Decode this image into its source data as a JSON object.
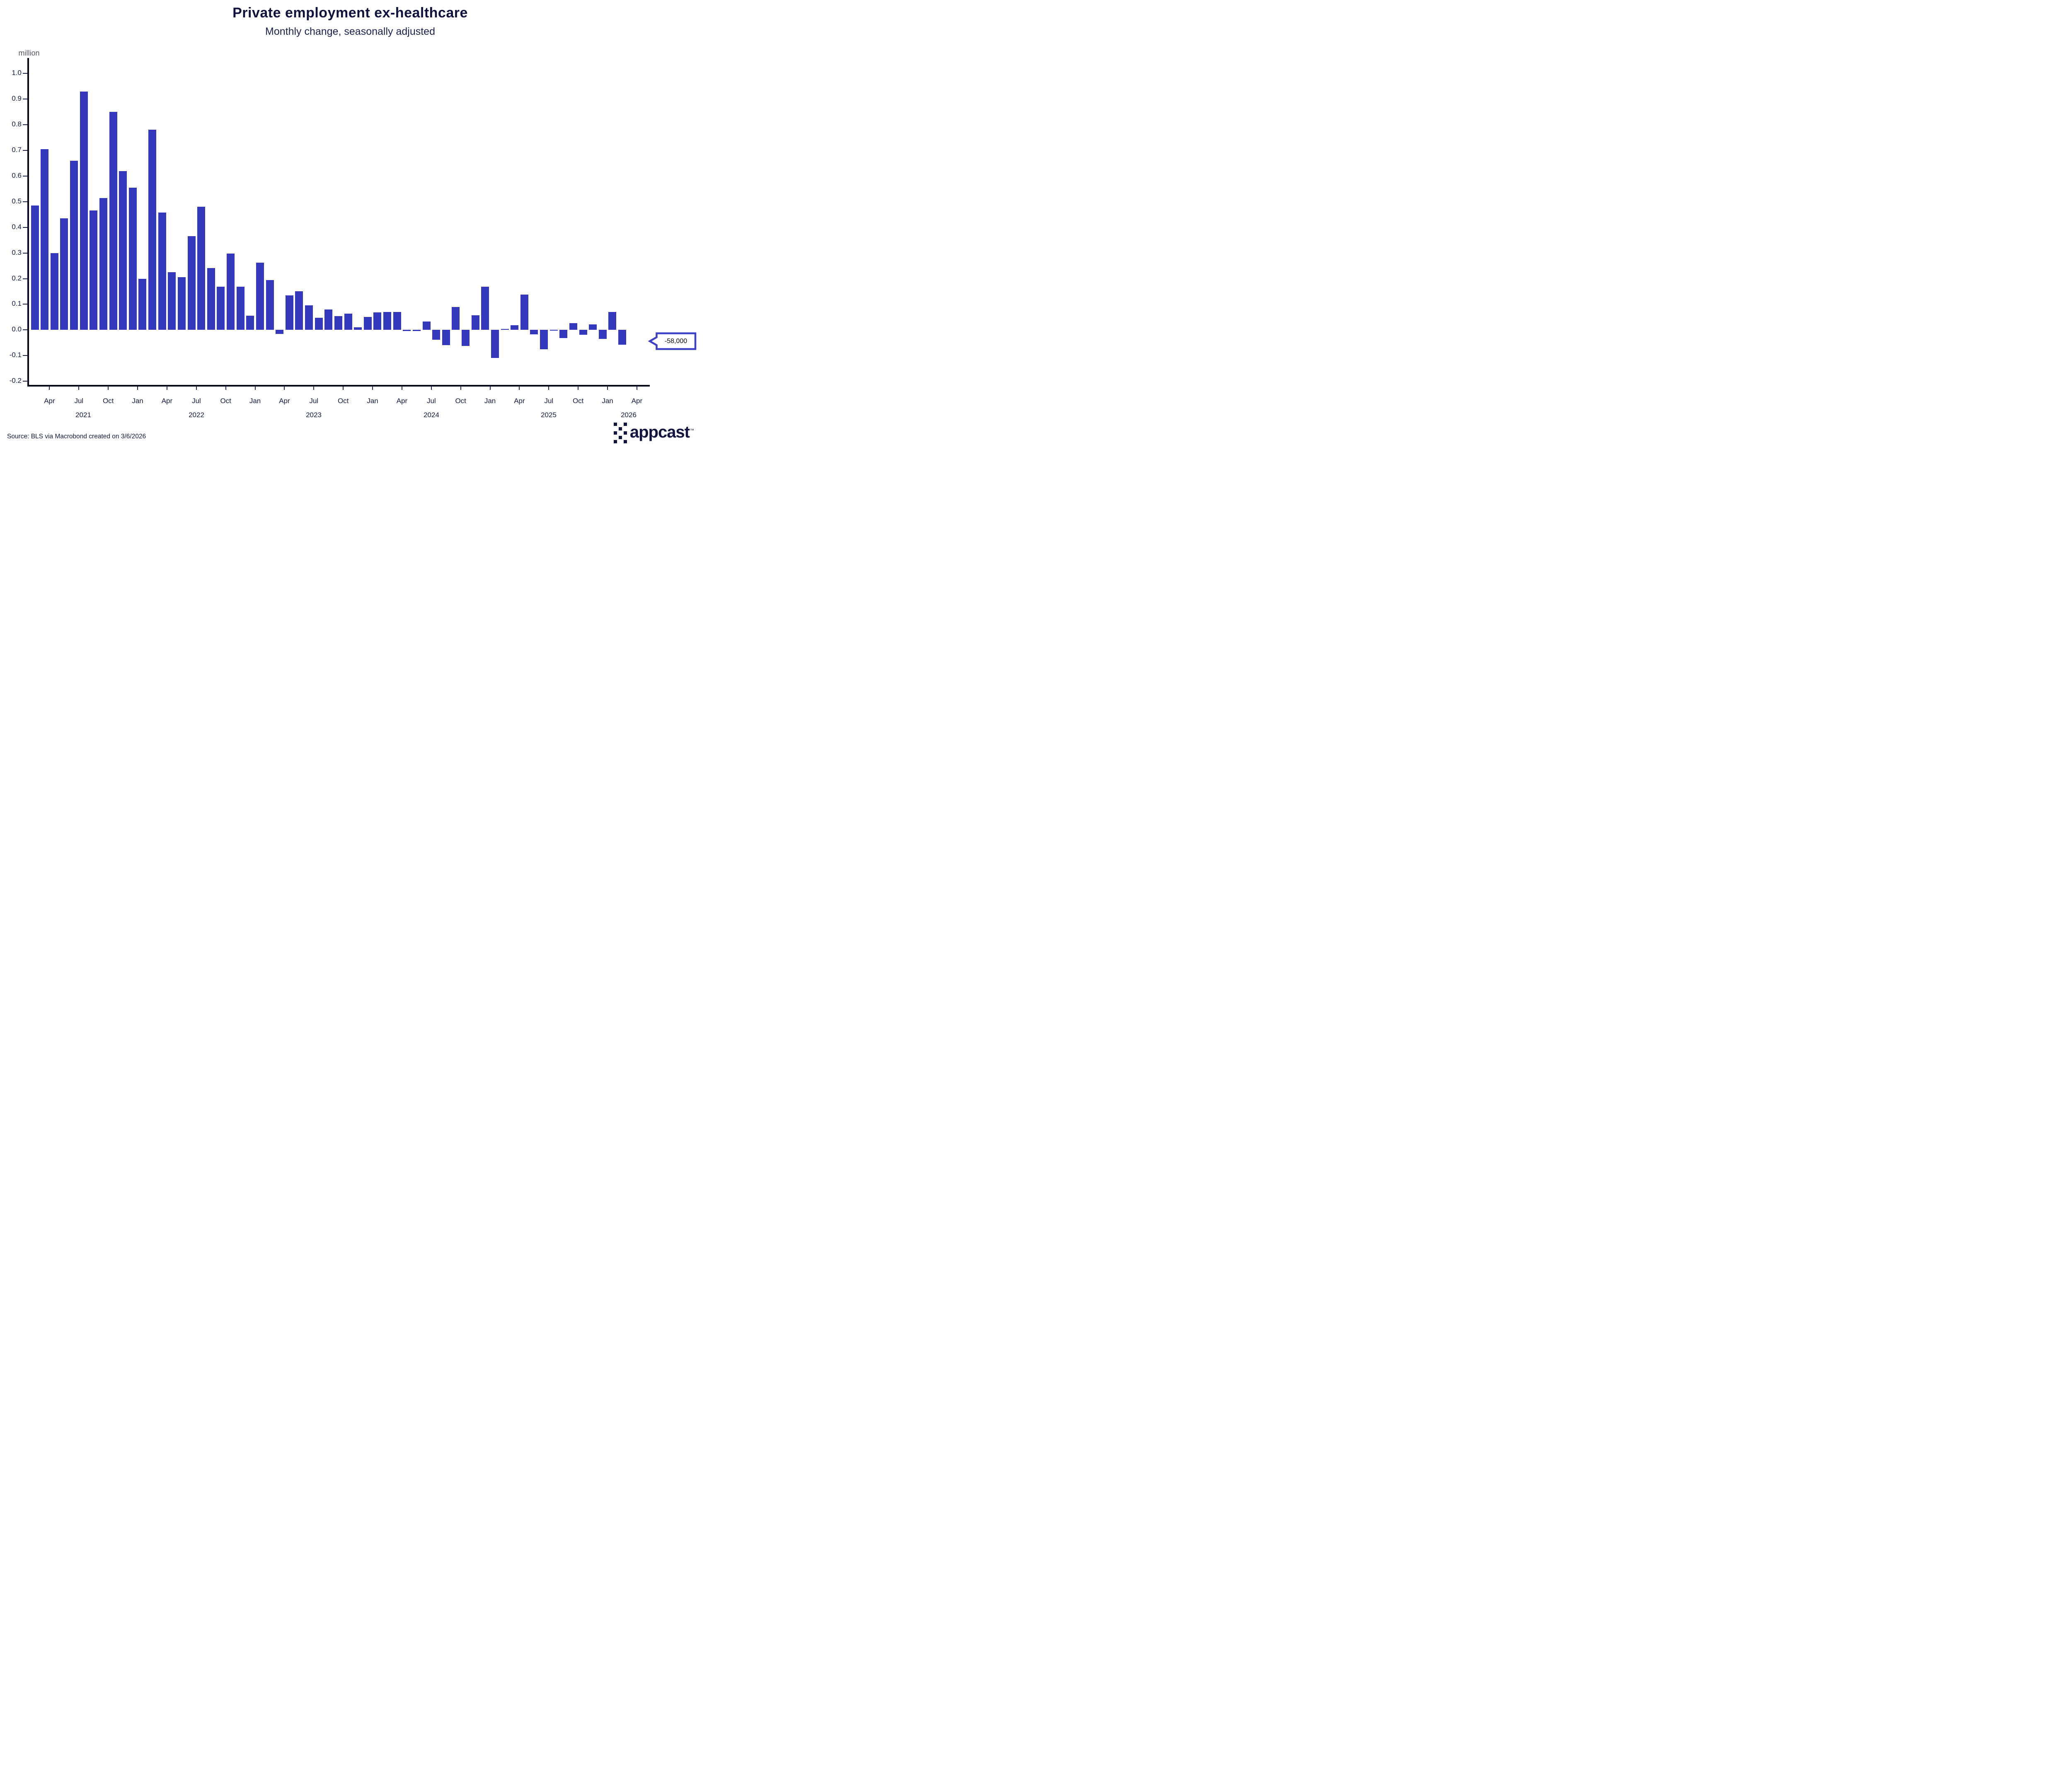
{
  "header": {
    "title": "Private employment ex-healthcare",
    "subtitle": "Monthly change, seasonally adjusted"
  },
  "chart_data": {
    "type": "bar",
    "title": "Private employment ex-healthcare",
    "subtitle": "Monthly change, seasonally adjusted",
    "ylabel": "million",
    "xlabel": "",
    "ylim": [
      -0.2,
      1.0
    ],
    "grid": false,
    "bar_color": "#3338bd",
    "categories": [
      "Feb 2021",
      "Mar 2021",
      "Apr 2021",
      "May 2021",
      "Jun 2021",
      "Jul 2021",
      "Aug 2021",
      "Sep 2021",
      "Oct 2021",
      "Nov 2021",
      "Dec 2021",
      "Jan 2022",
      "Feb 2022",
      "Mar 2022",
      "Apr 2022",
      "May 2022",
      "Jun 2022",
      "Jul 2022",
      "Aug 2022",
      "Sep 2022",
      "Oct 2022",
      "Nov 2022",
      "Dec 2022",
      "Jan 2023",
      "Feb 2023",
      "Mar 2023",
      "Apr 2023",
      "May 2023",
      "Jun 2023",
      "Jul 2023",
      "Aug 2023",
      "Sep 2023",
      "Oct 2023",
      "Nov 2023",
      "Dec 2023",
      "Jan 2024",
      "Feb 2024",
      "Mar 2024",
      "Apr 2024",
      "May 2024",
      "Jun 2024",
      "Jul 2024",
      "Aug 2024",
      "Sep 2024",
      "Oct 2024",
      "Nov 2024",
      "Dec 2024",
      "Jan 2025",
      "Feb 2025",
      "Mar 2025",
      "Apr 2025",
      "May 2025",
      "Jun 2025",
      "Jul 2025",
      "Aug 2025",
      "Sep 2025",
      "Oct 2025",
      "Nov 2025",
      "Dec 2025",
      "Jan 2026",
      "Feb 2026"
    ],
    "values": [
      0.485,
      0.705,
      0.3,
      0.435,
      0.66,
      0.93,
      0.465,
      0.515,
      0.85,
      0.62,
      0.555,
      0.2,
      0.78,
      0.458,
      0.225,
      0.206,
      0.366,
      0.48,
      0.242,
      0.168,
      0.298,
      0.168,
      0.056,
      0.262,
      0.195,
      -0.015,
      0.135,
      0.15,
      0.095,
      0.047,
      0.08,
      0.053,
      0.063,
      0.01,
      0.05,
      0.068,
      0.07,
      0.07,
      -0.005,
      -0.005,
      0.032,
      -0.038,
      -0.06,
      0.09,
      -0.062,
      0.057,
      0.168,
      -0.11,
      0.004,
      0.019,
      0.137,
      -0.018,
      -0.076,
      -0.002,
      -0.032,
      0.027,
      -0.019,
      0.021,
      -0.035,
      0.07,
      -0.058
    ],
    "y_tick_labels": [
      "1.0",
      "0.9",
      "0.8",
      "0.7",
      "0.6",
      "0.5",
      "0.4",
      "0.3",
      "0.2",
      "0.1",
      "0.0",
      "-0.1",
      "-0.2"
    ],
    "y_tick_values": [
      1.0,
      0.9,
      0.8,
      0.7,
      0.6,
      0.5,
      0.4,
      0.3,
      0.2,
      0.1,
      0.0,
      -0.1,
      -0.2
    ],
    "x_ticks": [
      {
        "label": "Apr",
        "month_index": 2
      },
      {
        "label": "Jul",
        "month_index": 5
      },
      {
        "label": "Oct",
        "month_index": 8
      },
      {
        "label": "Jan",
        "month_index": 11
      },
      {
        "label": "Apr",
        "month_index": 14
      },
      {
        "label": "Jul",
        "month_index": 17
      },
      {
        "label": "Oct",
        "month_index": 20
      },
      {
        "label": "Jan",
        "month_index": 23
      },
      {
        "label": "Apr",
        "month_index": 26
      },
      {
        "label": "Jul",
        "month_index": 29
      },
      {
        "label": "Oct",
        "month_index": 32
      },
      {
        "label": "Jan",
        "month_index": 35
      },
      {
        "label": "Apr",
        "month_index": 38
      },
      {
        "label": "Jul",
        "month_index": 41
      },
      {
        "label": "Oct",
        "month_index": 44
      },
      {
        "label": "Jan",
        "month_index": 47
      },
      {
        "label": "Apr",
        "month_index": 50
      },
      {
        "label": "Jul",
        "month_index": 53
      },
      {
        "label": "Oct",
        "month_index": 56
      },
      {
        "label": "Jan",
        "month_index": 59
      },
      {
        "label": "Apr",
        "month_index": 62
      }
    ],
    "year_labels": [
      {
        "label": "2021",
        "x": 201
      },
      {
        "label": "2022",
        "x": 474
      },
      {
        "label": "2023",
        "x": 757
      },
      {
        "label": "2024",
        "x": 1041
      },
      {
        "label": "2025",
        "x": 1324
      },
      {
        "label": "2026",
        "x": 1517
      }
    ],
    "legend_position": "none"
  },
  "callout": {
    "text": "-58,000",
    "value": -58000,
    "points_to": "Feb 2026"
  },
  "footer": {
    "source": "Source: BLS via Macrobond created on 3/6/2026"
  },
  "logo": {
    "text": "appcast",
    "tm": "™"
  },
  "colors": {
    "bar": "#3338bd",
    "callout_border": "#3c40c8",
    "title_text": "#10123e",
    "axis": "#05071c",
    "unit_label_gray": "#53565f"
  }
}
